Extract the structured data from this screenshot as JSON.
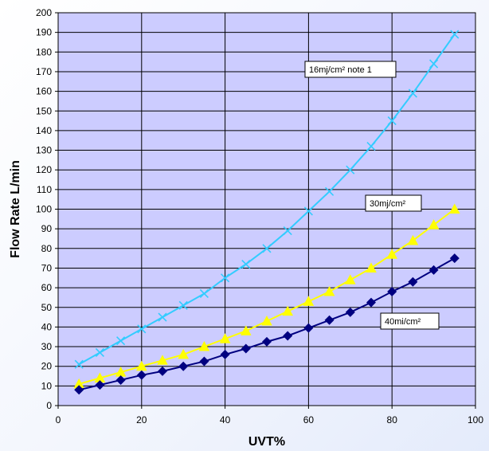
{
  "chart_data": {
    "type": "line",
    "xlabel": "UVT%",
    "ylabel": "Flow  Rate  L/min",
    "xlim": [
      0,
      100
    ],
    "ylim": [
      0,
      200
    ],
    "x_ticks": [
      0,
      20,
      40,
      60,
      80,
      100
    ],
    "y_ticks": [
      0,
      10,
      20,
      30,
      40,
      50,
      60,
      70,
      80,
      90,
      100,
      110,
      120,
      130,
      140,
      150,
      160,
      170,
      180,
      190,
      200
    ],
    "grid": true,
    "plot_background": "#ccccff",
    "x": [
      5,
      10,
      15,
      20,
      25,
      30,
      35,
      40,
      45,
      50,
      55,
      60,
      65,
      70,
      75,
      80,
      85,
      90,
      95
    ],
    "series": [
      {
        "name": "16mj/cm²  note 1",
        "color": "#33ccff",
        "marker": "x",
        "values": [
          21,
          27,
          33,
          39,
          45,
          51,
          57,
          65,
          72,
          80,
          89,
          99,
          109,
          120,
          132,
          145,
          159,
          174,
          189
        ]
      },
      {
        "name": "30mj/cm²",
        "color": "#ffff00",
        "marker": "triangle",
        "values": [
          11,
          14,
          17,
          20,
          23,
          26,
          30,
          34,
          38,
          43,
          48,
          53,
          58,
          64,
          70,
          77,
          84,
          92,
          100
        ]
      },
      {
        "name": "40mj/cm²",
        "color": "#000080",
        "marker": "diamond",
        "values": [
          8,
          10.5,
          13,
          15.5,
          17.5,
          20,
          22.5,
          26,
          29,
          32.5,
          35.5,
          39.5,
          43.5,
          47.5,
          52.5,
          58,
          63,
          69,
          75
        ]
      }
    ],
    "annotations": [
      {
        "text": "16mj/cm²  note 1",
        "series": 0
      },
      {
        "text": "30mj/cm²",
        "series": 1
      },
      {
        "text": "40mi/cm²",
        "series": 2
      }
    ]
  }
}
